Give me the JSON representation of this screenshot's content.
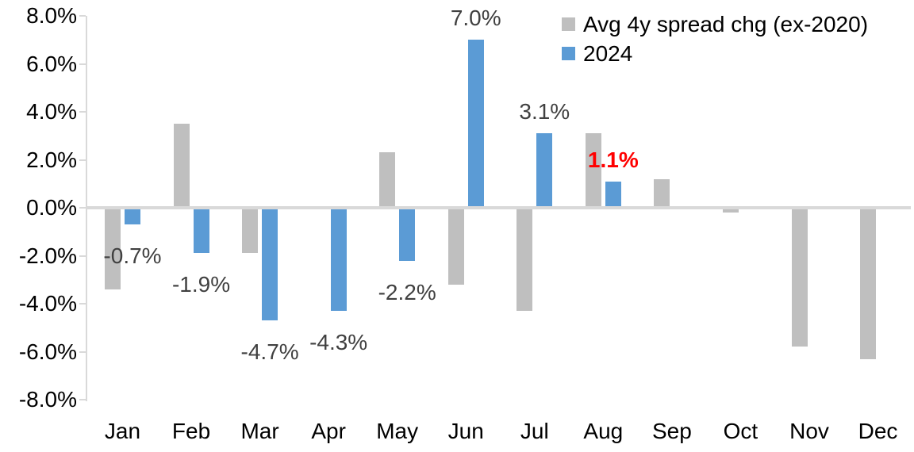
{
  "chart_data": {
    "type": "bar",
    "title": "",
    "xlabel": "",
    "ylabel": "",
    "categories": [
      "Jan",
      "Feb",
      "Mar",
      "Apr",
      "May",
      "Jun",
      "Jul",
      "Aug",
      "Sep",
      "Oct",
      "Nov",
      "Dec"
    ],
    "series": [
      {
        "name": "Avg 4y spread chg (ex-2020)",
        "color": "#BFBFBF",
        "values": [
          -3.4,
          3.5,
          -1.9,
          0.0,
          2.3,
          -3.2,
          -4.3,
          3.1,
          1.2,
          -0.2,
          -5.8,
          -6.3
        ]
      },
      {
        "name": "2024",
        "color": "#5B9BD5",
        "values": [
          -0.7,
          -1.9,
          -4.7,
          -4.3,
          -2.2,
          7.0,
          3.1,
          1.1,
          null,
          null,
          null,
          null
        ]
      }
    ],
    "data_labels": {
      "labeled_series": "2024",
      "labels": [
        {
          "text": "-0.7%",
          "color": "#404040",
          "bold": false
        },
        {
          "text": "-1.9%",
          "color": "#404040",
          "bold": false
        },
        {
          "text": "-4.7%",
          "color": "#404040",
          "bold": false
        },
        {
          "text": "-4.3%",
          "color": "#404040",
          "bold": false
        },
        {
          "text": "-2.2%",
          "color": "#404040",
          "bold": false
        },
        {
          "text": "7.0%",
          "color": "#404040",
          "bold": false
        },
        {
          "text": "3.1%",
          "color": "#404040",
          "bold": false
        },
        {
          "text": "1.1%",
          "color": "#FF0000",
          "bold": true
        },
        null,
        null,
        null,
        null
      ]
    },
    "y_axis": {
      "min": -8,
      "max": 8,
      "step": 2,
      "tick_labels": [
        "8.0%",
        "6.0%",
        "4.0%",
        "2.0%",
        "0.0%",
        "-2.0%",
        "-4.0%",
        "-6.0%",
        "-8.0%"
      ]
    },
    "legend": {
      "position": "top-right",
      "entries": [
        {
          "label": "Avg 4y spread chg (ex-2020)",
          "color": "#BFBFBF"
        },
        {
          "label": "2024",
          "color": "#5B9BD5"
        }
      ]
    },
    "grid": false,
    "axis_color": "#D9D9D9",
    "background_color": "#FFFFFF"
  }
}
